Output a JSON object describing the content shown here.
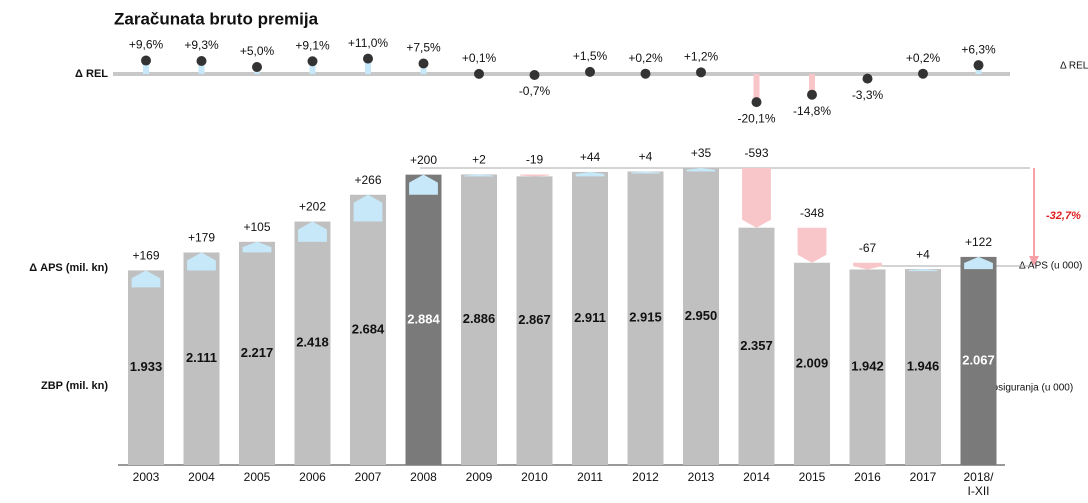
{
  "chart_data": {
    "type": "bar",
    "title": "Zaračunata bruto premija",
    "row_labels": {
      "rel": "Δ REL",
      "delta": "Δ APS (mil. kn)",
      "value": "ZBP (mil. kn)"
    },
    "right_labels": {
      "rel": "Δ REL",
      "delta": "Δ APS (u 000)",
      "value": "Broj osiguranja (u 000)"
    },
    "annotation": "-32,7%",
    "categories": [
      "2003",
      "2004",
      "2005",
      "2006",
      "2007",
      "2008",
      "2009",
      "2010",
      "2011",
      "2012",
      "2013",
      "2014",
      "2015",
      "2016",
      "2017",
      "2018/ I-XII"
    ],
    "values": [
      1933,
      2111,
      2217,
      2418,
      2684,
      2884,
      2886,
      2867,
      2911,
      2915,
      2950,
      2357,
      2009,
      1942,
      1946,
      2067
    ],
    "value_labels": [
      "1.933",
      "2.111",
      "2.217",
      "2.418",
      "2.684",
      "2.884",
      "2.886",
      "2.867",
      "2.911",
      "2.915",
      "2.950",
      "2.357",
      "2.009",
      "1.942",
      "1.946",
      "2.067"
    ],
    "delta": [
      169,
      179,
      105,
      202,
      266,
      200,
      2,
      -19,
      44,
      4,
      35,
      -593,
      -348,
      -67,
      4,
      122
    ],
    "delta_labels": [
      "+169",
      "+179",
      "+105",
      "+202",
      "+266",
      "+200",
      "+2",
      "-19",
      "+44",
      "+4",
      "+35",
      "-593",
      "-348",
      "-67",
      "+4",
      "+122"
    ],
    "rel": [
      9.6,
      9.3,
      5.0,
      9.1,
      11.0,
      7.5,
      0.1,
      -0.7,
      1.5,
      0.2,
      1.2,
      -20.1,
      -14.8,
      -3.3,
      0.2,
      6.3
    ],
    "rel_labels": [
      "+9,6%",
      "+9,3%",
      "+5,0%",
      "+9,1%",
      "+11,0%",
      "+7,5%",
      "+0,1%",
      "-0,7%",
      "+1,5%",
      "+0,2%",
      "+1,2%",
      "-20,1%",
      "-14,8%",
      "-3,3%",
      "+0,2%",
      "+6,3%"
    ],
    "colors": [
      "#c0c0c0",
      "#c0c0c0",
      "#c0c0c0",
      "#c0c0c0",
      "#c0c0c0",
      "#7a7a7a",
      "#c0c0c0",
      "#c0c0c0",
      "#c0c0c0",
      "#c0c0c0",
      "#c0c0c0",
      "#c0c0c0",
      "#c0c0c0",
      "#c0c0c0",
      "#c0c0c0",
      "#7a7a7a"
    ],
    "positive_color": "#c6e8f8",
    "negative_color": "#f8c6c8"
  }
}
